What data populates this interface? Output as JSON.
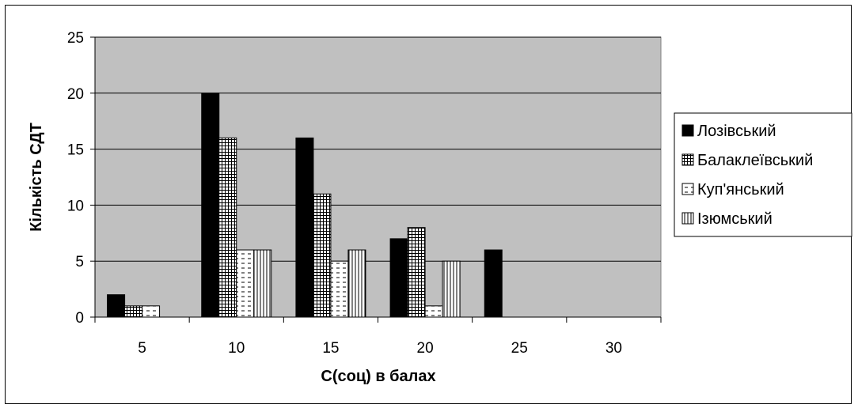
{
  "chart_data": {
    "type": "bar",
    "title": "",
    "xlabel": "С(соц) в балах",
    "ylabel": "Кількість СДТ",
    "categories": [
      "5",
      "10",
      "15",
      "20",
      "25",
      "30"
    ],
    "ylim": [
      0,
      25
    ],
    "yticks": [
      0,
      5,
      10,
      15,
      20,
      25
    ],
    "grid": true,
    "legend_position": "right",
    "plot_background": "#c0c0c0",
    "series": [
      {
        "name": "Лозівський",
        "values": [
          2,
          20,
          16,
          7,
          6,
          0
        ],
        "pattern": "solid"
      },
      {
        "name": "Балаклеївський",
        "values": [
          1,
          16,
          11,
          8,
          0,
          0
        ],
        "pattern": "grid"
      },
      {
        "name": "Куп'янський",
        "values": [
          1,
          6,
          5,
          1,
          0,
          0
        ],
        "pattern": "dashes"
      },
      {
        "name": "Ізюмський",
        "values": [
          0,
          6,
          6,
          5,
          0,
          0
        ],
        "pattern": "vertical"
      }
    ]
  }
}
